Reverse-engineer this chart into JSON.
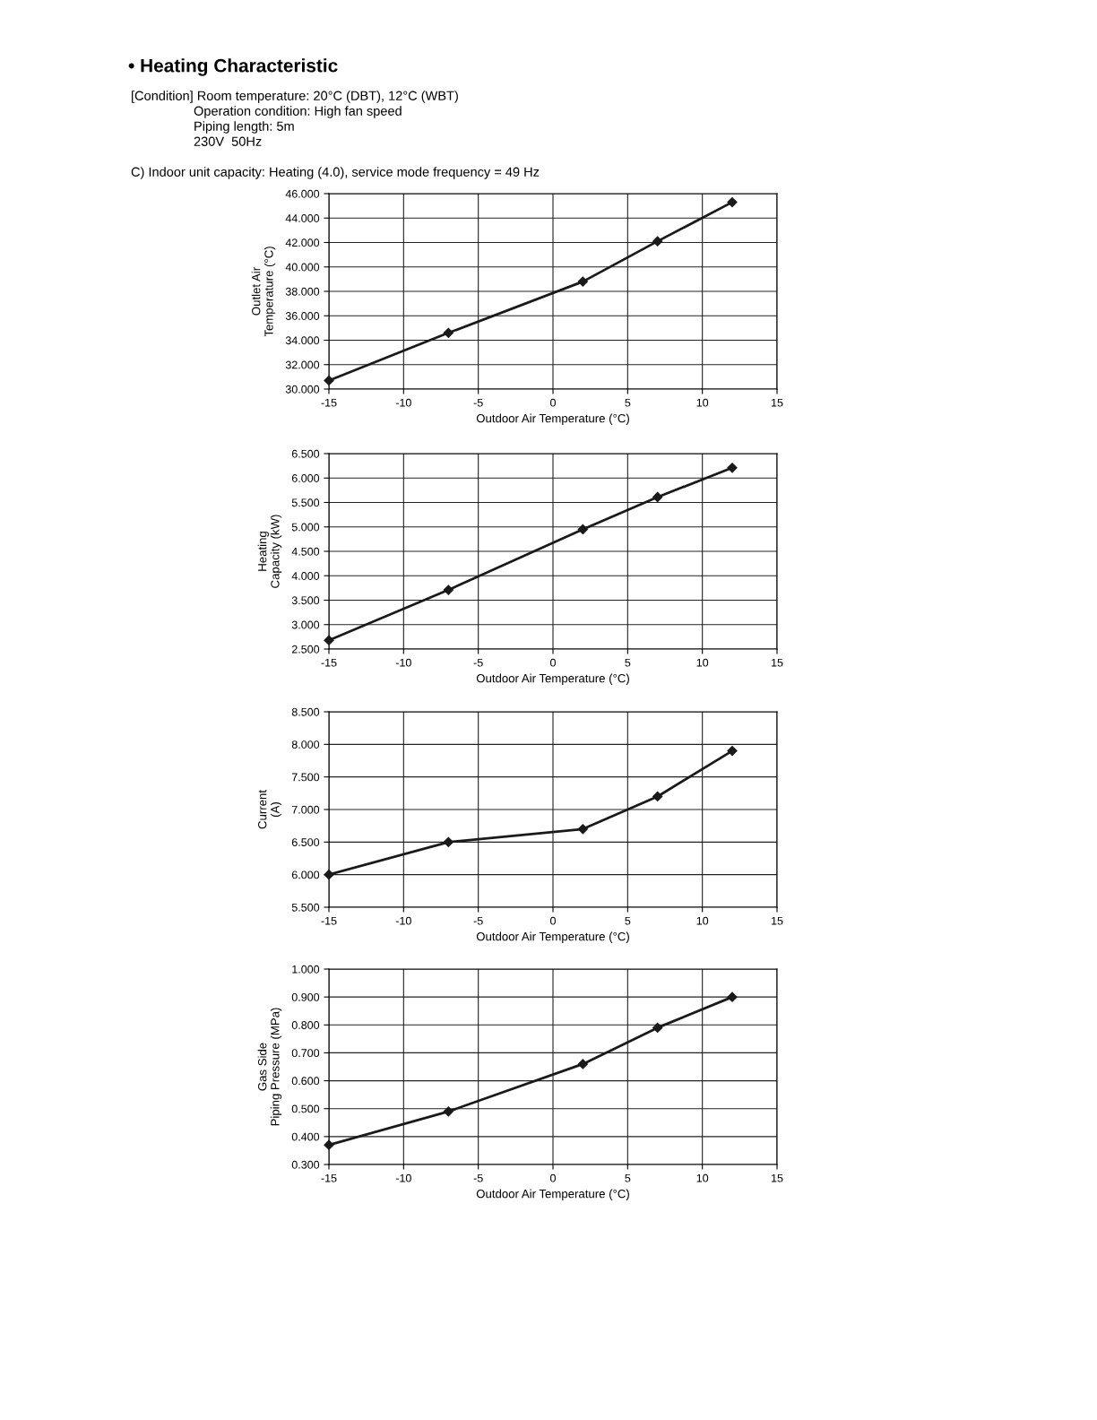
{
  "chart_data": [
    {
      "type": "line",
      "title": "• Heating Characteristic",
      "annotations": [
        "[Condition] Room temperature: 20°C (DBT), 12°C (WBT)",
        "Operation condition: High fan speed",
        "Piping length: 5m",
        "230V  50Hz",
        "C) Indoor unit capacity: Heating (4.0), service mode frequency = 49 Hz"
      ],
      "xlabel": "Outdoor Air Temperature (°C)",
      "ylabel": "Outlet Air\nTemperature (°C)",
      "x": [
        -15,
        -7,
        2,
        7,
        12
      ],
      "series": [
        {
          "color": "#1a1a1a",
          "values": [
            30.7,
            34.6,
            38.8,
            42.1,
            45.3
          ]
        }
      ],
      "xlim": [
        -15,
        15
      ],
      "xticks": [
        -15,
        -10,
        -5,
        0,
        5,
        10,
        15
      ],
      "ylim": [
        30,
        46
      ],
      "yticks": [
        {
          "value": 30,
          "label": "30.000"
        },
        {
          "value": 32,
          "label": "32.000"
        },
        {
          "value": 34,
          "label": "34.000"
        },
        {
          "value": 36,
          "label": "36.000"
        },
        {
          "value": 38,
          "label": "38.000"
        },
        {
          "value": 40,
          "label": "40.000"
        },
        {
          "value": 42,
          "label": "42.000"
        },
        {
          "value": 44,
          "label": "44.000"
        },
        {
          "value": 46,
          "label": "46.000"
        }
      ],
      "grid": true,
      "marker": "diamond",
      "line_style": "solid"
    },
    {
      "type": "line",
      "xlabel": "Outdoor Air Temperature (°C)",
      "ylabel": "Heating\nCapacity (kW)",
      "x": [
        -15,
        -7,
        2,
        7,
        12
      ],
      "series": [
        {
          "color": "#1a1a1a",
          "values": [
            2.68,
            3.71,
            4.95,
            5.61,
            6.21
          ]
        }
      ],
      "xlim": [
        -15,
        15
      ],
      "xticks": [
        -15,
        -10,
        -5,
        0,
        5,
        10,
        15
      ],
      "ylim": [
        2.5,
        6.5
      ],
      "yticks": [
        {
          "value": 2.5,
          "label": "2.500"
        },
        {
          "value": 3,
          "label": "3.000"
        },
        {
          "value": 3.5,
          "label": "3.500"
        },
        {
          "value": 4,
          "label": "4.000"
        },
        {
          "value": 4.5,
          "label": "4.500"
        },
        {
          "value": 5,
          "label": "5.000"
        },
        {
          "value": 5.5,
          "label": "5.500"
        },
        {
          "value": 6,
          "label": "6.000"
        },
        {
          "value": 6.5,
          "label": "6.500"
        }
      ],
      "grid": true,
      "marker": "diamond",
      "line_style": "solid"
    },
    {
      "type": "line",
      "xlabel": "Outdoor Air Temperature (°C)",
      "ylabel": "Current\n(A)",
      "x": [
        -15,
        -7,
        2,
        7,
        12
      ],
      "series": [
        {
          "color": "#1a1a1a",
          "values": [
            6.0,
            6.5,
            6.7,
            7.2,
            7.9
          ]
        }
      ],
      "xlim": [
        -15,
        15
      ],
      "xticks": [
        -15,
        -10,
        -5,
        0,
        5,
        10,
        15
      ],
      "ylim": [
        5.5,
        8.5
      ],
      "yticks": [
        {
          "value": 5.5,
          "label": "5.500"
        },
        {
          "value": 6,
          "label": "6.000"
        },
        {
          "value": 6.5,
          "label": "6.500"
        },
        {
          "value": 7,
          "label": "7.000"
        },
        {
          "value": 7.5,
          "label": "7.500"
        },
        {
          "value": 8,
          "label": "8.000"
        },
        {
          "value": 8.5,
          "label": "8.500"
        }
      ],
      "grid": true,
      "marker": "diamond",
      "line_style": "solid"
    },
    {
      "type": "line",
      "xlabel": "Outdoor Air Temperature (°C)",
      "ylabel": "Gas Side\nPiping Pressure (MPa)",
      "x": [
        -15,
        -7,
        2,
        7,
        12
      ],
      "series": [
        {
          "color": "#1a1a1a",
          "values": [
            0.37,
            0.49,
            0.66,
            0.79,
            0.9
          ]
        }
      ],
      "xlim": [
        -15,
        15
      ],
      "xticks": [
        -15,
        -10,
        -5,
        0,
        5,
        10,
        15
      ],
      "ylim": [
        0.3,
        1.0
      ],
      "yticks": [
        {
          "value": 0.3,
          "label": "0.300"
        },
        {
          "value": 0.4,
          "label": "0.400"
        },
        {
          "value": 0.5,
          "label": "0.500"
        },
        {
          "value": 0.6,
          "label": "0.600"
        },
        {
          "value": 0.7,
          "label": "0.700"
        },
        {
          "value": 0.8,
          "label": "0.800"
        },
        {
          "value": 0.9,
          "label": "0.900"
        },
        {
          "value": 1.0,
          "label": "1.000"
        }
      ],
      "grid": true,
      "marker": "diamond",
      "line_style": "solid"
    }
  ]
}
